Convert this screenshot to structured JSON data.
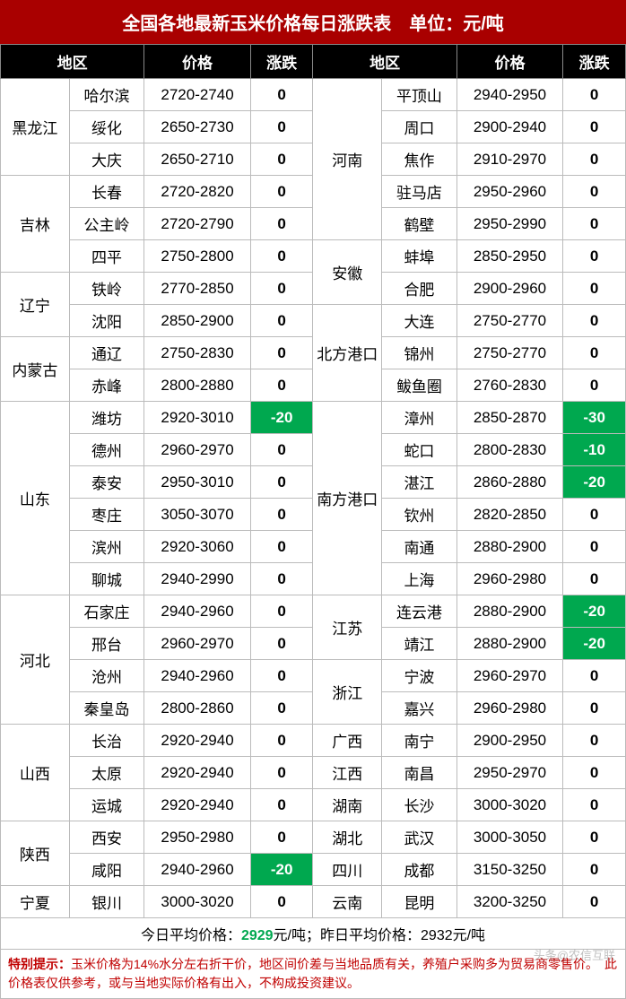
{
  "title": "全国各地最新玉米价格每日涨跌表　单位：元/吨",
  "headers": [
    "地区",
    "价格",
    "涨跌",
    "地区",
    "价格",
    "涨跌"
  ],
  "colors": {
    "header_bg": "#000000",
    "title_bg": "#a90000",
    "neg_bg": "#00a84f",
    "accent": "#c00000"
  },
  "left": [
    {
      "province": "黑龙江",
      "rows": [
        {
          "city": "哈尔滨",
          "price": "2720-2740",
          "change": 0
        },
        {
          "city": "绥化",
          "price": "2650-2730",
          "change": 0
        },
        {
          "city": "大庆",
          "price": "2650-2710",
          "change": 0
        }
      ]
    },
    {
      "province": "吉林",
      "rows": [
        {
          "city": "长春",
          "price": "2720-2820",
          "change": 0
        },
        {
          "city": "公主岭",
          "price": "2720-2790",
          "change": 0
        },
        {
          "city": "四平",
          "price": "2750-2800",
          "change": 0
        }
      ]
    },
    {
      "province": "辽宁",
      "rows": [
        {
          "city": "铁岭",
          "price": "2770-2850",
          "change": 0
        },
        {
          "city": "沈阳",
          "price": "2850-2900",
          "change": 0
        }
      ]
    },
    {
      "province": "内蒙古",
      "rows": [
        {
          "city": "通辽",
          "price": "2750-2830",
          "change": 0
        },
        {
          "city": "赤峰",
          "price": "2800-2880",
          "change": 0
        }
      ]
    },
    {
      "province": "山东",
      "rows": [
        {
          "city": "潍坊",
          "price": "2920-3010",
          "change": -20
        },
        {
          "city": "德州",
          "price": "2960-2970",
          "change": 0
        },
        {
          "city": "泰安",
          "price": "2950-3010",
          "change": 0
        },
        {
          "city": "枣庄",
          "price": "3050-3070",
          "change": 0
        },
        {
          "city": "滨州",
          "price": "2920-3060",
          "change": 0
        },
        {
          "city": "聊城",
          "price": "2940-2990",
          "change": 0
        }
      ]
    },
    {
      "province": "河北",
      "rows": [
        {
          "city": "石家庄",
          "price": "2940-2960",
          "change": 0
        },
        {
          "city": "邢台",
          "price": "2960-2970",
          "change": 0
        },
        {
          "city": "沧州",
          "price": "2940-2960",
          "change": 0
        },
        {
          "city": "秦皇岛",
          "price": "2800-2860",
          "change": 0
        }
      ]
    },
    {
      "province": "山西",
      "rows": [
        {
          "city": "长治",
          "price": "2920-2940",
          "change": 0
        },
        {
          "city": "太原",
          "price": "2920-2940",
          "change": 0
        },
        {
          "city": "运城",
          "price": "2920-2940",
          "change": 0
        }
      ]
    },
    {
      "province": "陕西",
      "rows": [
        {
          "city": "西安",
          "price": "2950-2980",
          "change": 0
        },
        {
          "city": "咸阳",
          "price": "2940-2960",
          "change": -20
        }
      ]
    },
    {
      "province": "宁夏",
      "rows": [
        {
          "city": "银川",
          "price": "3000-3020",
          "change": 0
        }
      ]
    }
  ],
  "right": [
    {
      "province": "河南",
      "rows": [
        {
          "city": "平顶山",
          "price": "2940-2950",
          "change": 0
        },
        {
          "city": "周口",
          "price": "2900-2940",
          "change": 0
        },
        {
          "city": "焦作",
          "price": "2910-2970",
          "change": 0
        },
        {
          "city": "驻马店",
          "price": "2950-2960",
          "change": 0
        },
        {
          "city": "鹤壁",
          "price": "2950-2990",
          "change": 0
        }
      ]
    },
    {
      "province": "安徽",
      "rows": [
        {
          "city": "蚌埠",
          "price": "2850-2950",
          "change": 0
        },
        {
          "city": "合肥",
          "price": "2900-2960",
          "change": 0
        }
      ]
    },
    {
      "province": "北方港口",
      "rows": [
        {
          "city": "大连",
          "price": "2750-2770",
          "change": 0
        },
        {
          "city": "锦州",
          "price": "2750-2770",
          "change": 0
        },
        {
          "city": "鲅鱼圈",
          "price": "2760-2830",
          "change": 0
        }
      ]
    },
    {
      "province": "南方港口",
      "rows": [
        {
          "city": "漳州",
          "price": "2850-2870",
          "change": -30
        },
        {
          "city": "蛇口",
          "price": "2800-2830",
          "change": -10
        },
        {
          "city": "湛江",
          "price": "2860-2880",
          "change": -20
        },
        {
          "city": "钦州",
          "price": "2820-2850",
          "change": 0
        },
        {
          "city": "南通",
          "price": "2880-2900",
          "change": 0
        },
        {
          "city": "上海",
          "price": "2960-2980",
          "change": 0
        }
      ]
    },
    {
      "province": "江苏",
      "rows": [
        {
          "city": "连云港",
          "price": "2880-2900",
          "change": -20
        },
        {
          "city": "靖江",
          "price": "2880-2900",
          "change": -20
        }
      ]
    },
    {
      "province": "浙江",
      "rows": [
        {
          "city": "宁波",
          "price": "2960-2970",
          "change": 0
        },
        {
          "city": "嘉兴",
          "price": "2960-2980",
          "change": 0
        }
      ]
    },
    {
      "province": "广西",
      "rows": [
        {
          "city": "南宁",
          "price": "2900-2950",
          "change": 0
        }
      ]
    },
    {
      "province": "江西",
      "rows": [
        {
          "city": "南昌",
          "price": "2950-2970",
          "change": 0
        }
      ]
    },
    {
      "province": "湖南",
      "rows": [
        {
          "city": "长沙",
          "price": "3000-3020",
          "change": 0
        }
      ]
    },
    {
      "province": "湖北",
      "rows": [
        {
          "city": "武汉",
          "price": "3000-3050",
          "change": 0
        }
      ]
    },
    {
      "province": "四川",
      "rows": [
        {
          "city": "成都",
          "price": "3150-3250",
          "change": 0
        }
      ]
    },
    {
      "province": "云南",
      "rows": [
        {
          "city": "昆明",
          "price": "3200-3250",
          "change": 0
        }
      ]
    }
  ],
  "summary": {
    "today_label": "今日平均价格：",
    "today_value": "2929",
    "unit": "元/吨",
    "yesterday_label": "；昨日平均价格：",
    "yesterday_value": "2932"
  },
  "footer": {
    "label": "特别提示：",
    "text": "玉米价格为14%水分左右折干价，地区间价差与当地品质有关，养殖户采购多为贸易商零售价。　此价格表仅供参考，或与当地实际价格有出入，不构成投资建议。"
  },
  "watermark": "头条@农信互联"
}
